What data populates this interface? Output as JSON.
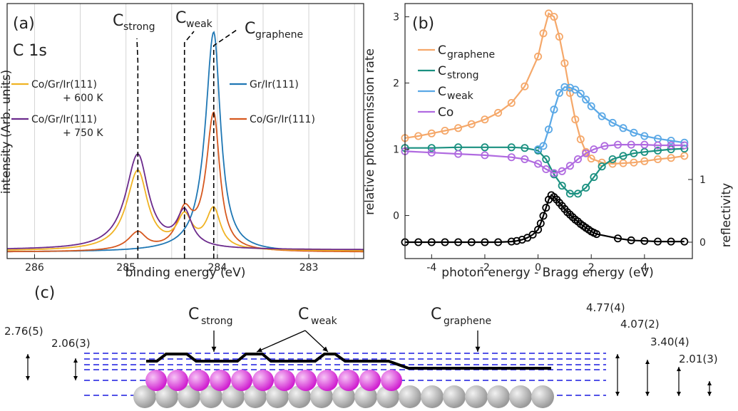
{
  "chart_data": [
    {
      "panel": "(a)",
      "type": "line",
      "core_level": "C 1s",
      "xlabel": "binding energy (eV)",
      "ylabel": "intensity (Arb. units)",
      "xlim": [
        286.3,
        282.4
      ],
      "x_reversed": true,
      "x_ticks": [
        "286",
        "285",
        "284",
        "283"
      ],
      "grid": "vertical",
      "peaks": {
        "C_strong": {
          "label_main": "C",
          "label_sub": "strong",
          "x": 284.87
        },
        "C_weak": {
          "label_main": "C",
          "label_sub": "weak",
          "x": 284.36
        },
        "C_graphene": {
          "label_main": "C",
          "label_sub": "graphene",
          "x": 284.04
        }
      },
      "series": [
        {
          "name": "Gr/Ir(111)",
          "color": "#1f77b4",
          "components": [
            [
              284.04,
              1.0,
              0.09,
              0.11
            ]
          ],
          "baseline": 0.01
        },
        {
          "name": "Co/Gr/Ir(111)",
          "color": "#d6581f",
          "components": [
            [
              284.04,
              0.62,
              0.08,
              0.1
            ],
            [
              284.36,
              0.16,
              0.1,
              0.1
            ],
            [
              284.87,
              0.08,
              0.11,
              0.13
            ]
          ],
          "baseline": 0.01
        },
        {
          "name": "Co/Gr/Ir(111)\n+ 600 K",
          "name_line1": "Co/Gr/Ir(111)",
          "name_line2": "+ 600 K",
          "color": "#f0b323",
          "components": [
            [
              284.04,
              0.18,
              0.09,
              0.1
            ],
            [
              284.36,
              0.14,
              0.1,
              0.1
            ],
            [
              284.87,
              0.36,
              0.13,
              0.15
            ]
          ],
          "baseline": 0.015
        },
        {
          "name": "Co/Gr/Ir(111)\n+ 750 K",
          "name_line1": "Co/Gr/Ir(111)",
          "name_line2": "+ 750 K",
          "color": "#6b2a8c",
          "components": [
            [
              284.36,
              0.16,
              0.1,
              0.1
            ],
            [
              284.87,
              0.43,
              0.14,
              0.16
            ]
          ],
          "baseline": 0.02
        }
      ],
      "ylim": [
        0,
        1.12
      ]
    },
    {
      "panel": "(b)",
      "type": "scatter",
      "xlabel": "photon energy - Bragg energy (eV)",
      "ylabel": "relative photoemission rate",
      "ylabel_right": "reflectivity",
      "xlim": [
        -5,
        5.8
      ],
      "ylim": [
        -0.65,
        3.2
      ],
      "x_ticks": [
        "-4",
        "-2",
        "0",
        "2",
        "4"
      ],
      "y_ticks": [
        "0",
        "1",
        "2",
        "3"
      ],
      "y_right_ticks": [
        "0",
        "1"
      ],
      "legend_position": "top-left",
      "series": [
        {
          "name_main": "C",
          "name_sub": "graphene",
          "color": "#f5a86a",
          "x": [
            -5,
            -4.5,
            -4,
            -3.5,
            -3,
            -2.5,
            -2,
            -1.5,
            -1,
            -0.5,
            0,
            0.2,
            0.4,
            0.6,
            0.8,
            1,
            1.2,
            1.4,
            1.6,
            1.8,
            2,
            2.4,
            2.8,
            3.2,
            3.6,
            4,
            4.5,
            5,
            5.5
          ],
          "y": [
            1.17,
            1.2,
            1.24,
            1.28,
            1.32,
            1.38,
            1.45,
            1.55,
            1.7,
            1.95,
            2.4,
            2.75,
            3.05,
            3.0,
            2.7,
            2.3,
            1.85,
            1.45,
            1.15,
            0.96,
            0.86,
            0.8,
            0.78,
            0.79,
            0.8,
            0.82,
            0.85,
            0.87,
            0.9
          ]
        },
        {
          "name_main": "C",
          "name_sub": "strong",
          "color": "#1a9080",
          "x": [
            -5,
            -4,
            -3,
            -2,
            -1,
            -0.5,
            0,
            0.3,
            0.6,
            0.9,
            1.2,
            1.5,
            1.8,
            2.1,
            2.4,
            2.8,
            3.2,
            3.6,
            4,
            4.5,
            5,
            5.5
          ],
          "y": [
            1.02,
            1.02,
            1.03,
            1.03,
            1.03,
            1.02,
            0.98,
            0.85,
            0.62,
            0.45,
            0.33,
            0.33,
            0.42,
            0.58,
            0.74,
            0.85,
            0.9,
            0.94,
            0.96,
            0.98,
            1.0,
            1.01
          ]
        },
        {
          "name_main": "C",
          "name_sub": "weak",
          "color": "#5aa8e6",
          "x": [
            0,
            0.2,
            0.4,
            0.6,
            0.8,
            1,
            1.2,
            1.4,
            1.6,
            1.8,
            2,
            2.4,
            2.8,
            3.2,
            3.6,
            4,
            4.5,
            5,
            5.5
          ],
          "y": [
            1.0,
            1.05,
            1.3,
            1.6,
            1.85,
            1.94,
            1.93,
            1.9,
            1.84,
            1.75,
            1.65,
            1.5,
            1.4,
            1.32,
            1.25,
            1.2,
            1.16,
            1.13,
            1.1
          ]
        },
        {
          "name_main": "Co",
          "name_sub": "",
          "color": "#b06ae0",
          "x": [
            -5,
            -4,
            -3,
            -2,
            -1,
            -0.5,
            0,
            0.3,
            0.6,
            0.9,
            1.2,
            1.5,
            1.8,
            2.1,
            2.5,
            3,
            3.5,
            4,
            4.5,
            5,
            5.5
          ],
          "y": [
            0.97,
            0.95,
            0.93,
            0.91,
            0.88,
            0.85,
            0.78,
            0.7,
            0.64,
            0.67,
            0.75,
            0.85,
            0.94,
            1.0,
            1.05,
            1.07,
            1.07,
            1.07,
            1.06,
            1.06,
            1.06
          ]
        },
        {
          "name_main": "",
          "name_sub": "",
          "color": "#000000",
          "axis": "right",
          "x": [
            -5,
            -4.5,
            -4,
            -3.5,
            -3,
            -2.5,
            -2,
            -1.5,
            -1,
            -0.8,
            -0.6,
            -0.4,
            -0.2,
            0,
            0.1,
            0.2,
            0.3,
            0.4,
            0.5,
            0.6,
            0.7,
            0.8,
            0.9,
            1,
            1.1,
            1.2,
            1.3,
            1.4,
            1.5,
            1.6,
            1.7,
            1.8,
            1.9,
            2,
            2.1,
            2.2,
            3,
            3.5,
            4,
            4.5,
            5,
            5.5
          ],
          "y": [
            0,
            0,
            0,
            0,
            0,
            0,
            0,
            0,
            0.01,
            0.02,
            0.04,
            0.07,
            0.12,
            0.2,
            0.3,
            0.42,
            0.55,
            0.68,
            0.75,
            0.72,
            0.68,
            0.63,
            0.58,
            0.53,
            0.48,
            0.44,
            0.4,
            0.36,
            0.33,
            0.29,
            0.26,
            0.23,
            0.2,
            0.17,
            0.15,
            0.13,
            0.06,
            0.03,
            0.02,
            0.01,
            0.01,
            0.01
          ]
        }
      ]
    },
    {
      "panel": "(c)",
      "type": "diagram",
      "labels": {
        "C_strong": {
          "main": "C",
          "sub": "strong"
        },
        "C_weak": {
          "main": "C",
          "sub": "weak"
        },
        "C_graphene": {
          "main": "C",
          "sub": "graphene"
        }
      },
      "distances_left": [
        "2.76(5)",
        "2.06(3)"
      ],
      "distances_right": [
        "4.77(4)",
        "4.07(2)",
        "3.40(4)",
        "2.01(3)"
      ],
      "colors": {
        "cobalt": "#d020d0",
        "iridium": "#9a9a9a",
        "levels": "#1a1adf"
      }
    }
  ]
}
